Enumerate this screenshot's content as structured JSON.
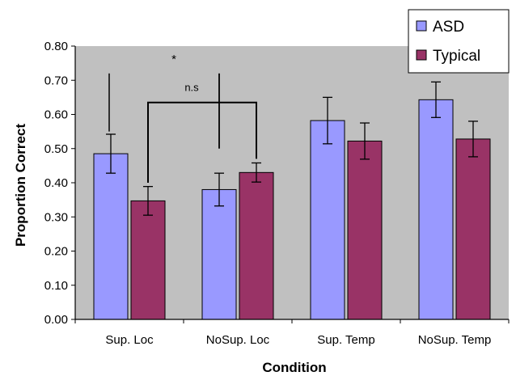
{
  "chart_data": {
    "type": "bar",
    "categories": [
      "Sup. Loc",
      "NoSup. Loc",
      "Sup. Temp",
      "NoSup. Temp"
    ],
    "series": [
      {
        "name": "ASD",
        "values": [
          0.485,
          0.38,
          0.582,
          0.643
        ],
        "errors": [
          0.057,
          0.048,
          0.068,
          0.052
        ],
        "color": "#9999ff"
      },
      {
        "name": "Typical",
        "values": [
          0.347,
          0.43,
          0.522,
          0.528
        ],
        "errors": [
          0.042,
          0.028,
          0.053,
          0.052
        ],
        "color": "#993366"
      }
    ],
    "title": "",
    "xlabel": "Condition",
    "ylabel": "Proportion  Correct",
    "ylim": [
      0,
      0.8
    ],
    "yticks": [
      "0.00",
      "0.10",
      "0.20",
      "0.30",
      "0.40",
      "0.50",
      "0.60",
      "0.70",
      "0.80"
    ],
    "grid": false,
    "plot_background": "#c0c0c0",
    "legend_position": "top-right",
    "annotations": [
      {
        "text": "*",
        "between": [
          "Sup. Loc/Typical",
          "NoSup. Loc/Typical"
        ]
      },
      {
        "text": "n.s",
        "between": [
          "NoSup. Loc/ASD",
          "NoSup. Loc/Typical"
        ]
      }
    ]
  }
}
